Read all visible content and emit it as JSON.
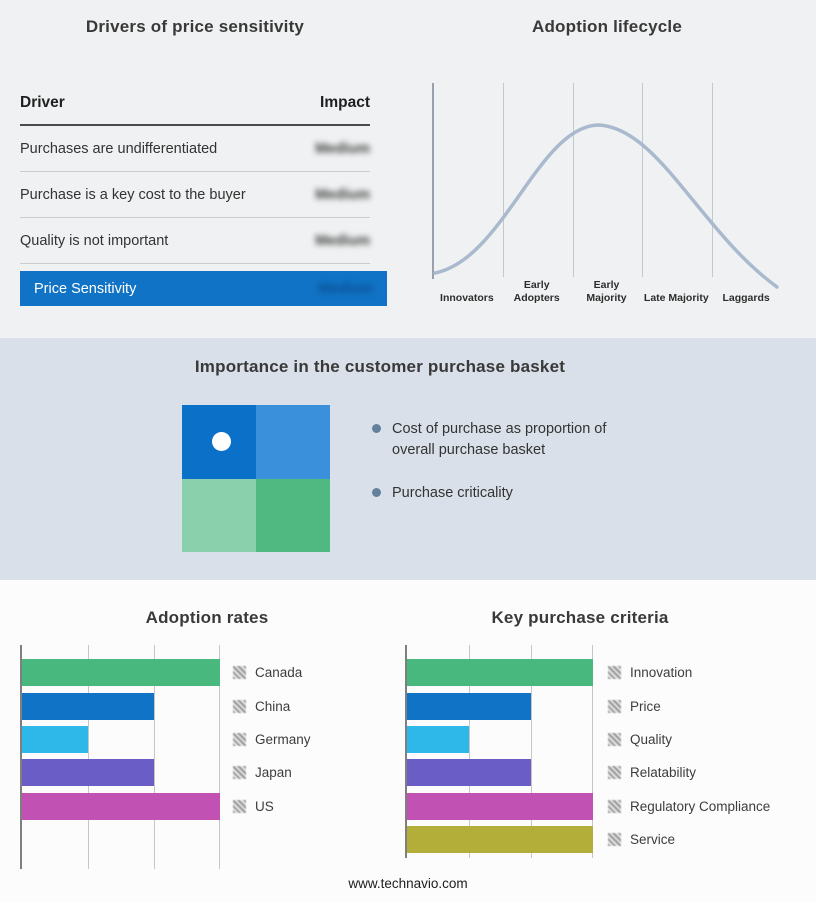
{
  "footer": {
    "url": "www.technavio.com"
  },
  "colors": {
    "accent_blue": "#1173c5",
    "mid_band_bg": "#d9e0e9",
    "curve": "#a9b9ce",
    "bullet_dot": "#64809c",
    "quadrant": [
      "#0a70c8",
      "#3a90da",
      "#8bd0ac",
      "#50b981"
    ]
  },
  "drivers_panel": {
    "title": "Drivers of price sensitivity",
    "columns": {
      "driver": "Driver",
      "impact": "Impact"
    },
    "rows": [
      {
        "driver": "Purchases are undifferentiated",
        "impact": "Medium"
      },
      {
        "driver": "Purchase is a key cost to the buyer",
        "impact": "Medium"
      },
      {
        "driver": "Quality is not important",
        "impact": "Medium"
      }
    ],
    "summary": {
      "label": "Price Sensitivity",
      "impact": "Medium"
    }
  },
  "lifecycle_panel": {
    "title": "Adoption lifecycle",
    "stages": [
      "Innovators",
      "Early Adopters",
      "Early Majority",
      "Late Majority",
      "Laggards"
    ]
  },
  "basket_panel": {
    "title": "Importance in the customer purchase basket",
    "bullets": [
      "Cost of purchase as proportion of overall purchase basket",
      "Purchase criticality"
    ]
  },
  "chart_data": [
    {
      "id": "lifecycle",
      "type": "line",
      "title": "Adoption lifecycle",
      "shape": "bell-curve",
      "x_categories": [
        "Innovators",
        "Early Adopters",
        "Early Majority",
        "Late Majority",
        "Laggards"
      ],
      "peak_stage": "Early Majority",
      "grid": "vertical-only",
      "line_color": "#a9b9ce"
    },
    {
      "id": "adoption_rates",
      "type": "bar",
      "orientation": "horizontal",
      "title": "Adoption rates",
      "categories": [
        "Canada",
        "China",
        "Germany",
        "Japan",
        "US"
      ],
      "values": [
        3,
        2,
        1,
        2,
        3
      ],
      "xlim": [
        0,
        3
      ],
      "colors": [
        "#48b87e",
        "#1173c5",
        "#2eb8ea",
        "#6a5ec6",
        "#c152b3"
      ],
      "legend_position": "right",
      "grid": "vertical-only"
    },
    {
      "id": "key_purchase_criteria",
      "type": "bar",
      "orientation": "horizontal",
      "title": "Key purchase criteria",
      "categories": [
        "Innovation",
        "Price",
        "Quality",
        "Relatability",
        "Regulatory Compliance",
        "Service"
      ],
      "values": [
        3,
        2,
        1,
        2,
        3,
        3
      ],
      "xlim": [
        0,
        3
      ],
      "colors": [
        "#48b87e",
        "#1173c5",
        "#2eb8ea",
        "#6a5ec6",
        "#c152b3",
        "#b3ae39"
      ],
      "legend_position": "right",
      "grid": "vertical-only"
    }
  ]
}
